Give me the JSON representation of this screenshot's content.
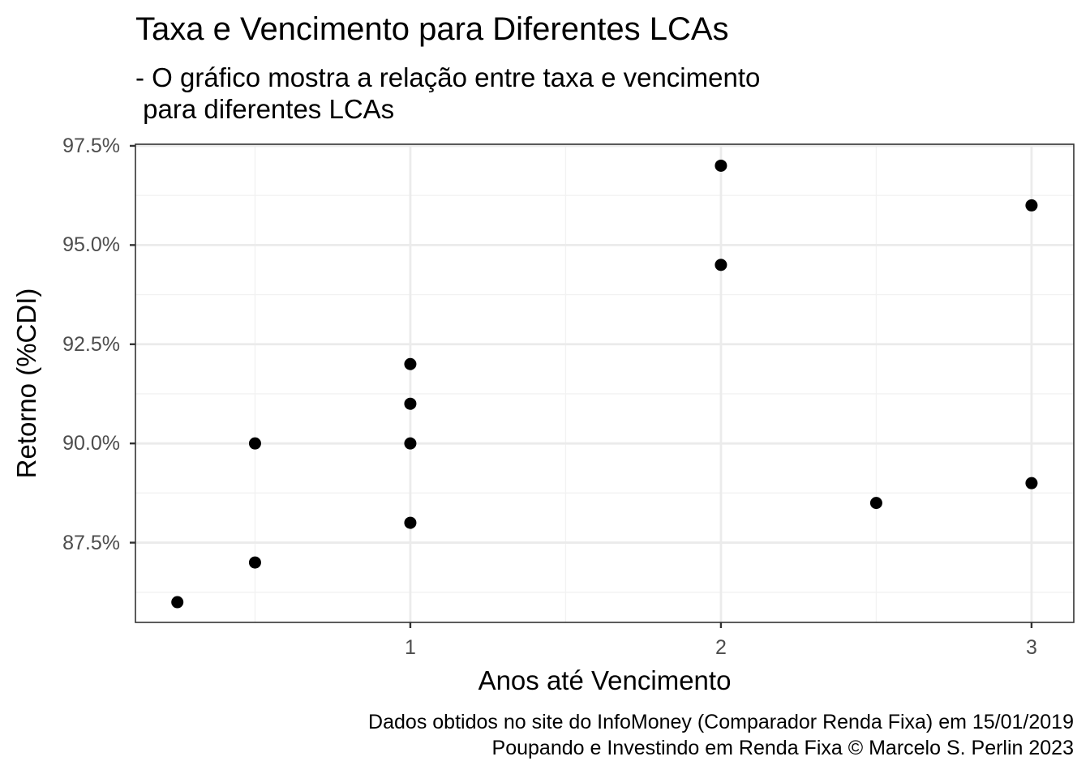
{
  "chart_data": {
    "type": "scatter",
    "title": "Taxa e Vencimento para Diferentes LCAs",
    "subtitle": "- O gráfico mostra a relação entre taxa e vencimento\n para diferentes LCAs",
    "xlabel": "Anos até Vencimento",
    "ylabel": "Retorno (%CDI)",
    "caption": [
      "Dados obtidos no site do InfoMoney (Comparador Renda Fixa) em 15/01/2019",
      "Poupando e Investindo em Renda Fixa © Marcelo S. Perlin 2023"
    ],
    "xlim": [
      0.115,
      3.136
    ],
    "ylim": [
      85.49,
      97.54
    ],
    "x_ticks": [
      1,
      2,
      3
    ],
    "x_tick_labels": [
      "1",
      "2",
      "3"
    ],
    "y_ticks": [
      87.5,
      90.0,
      92.5,
      95.0,
      97.5
    ],
    "y_tick_labels": [
      "87.5%",
      "90.0%",
      "92.5%",
      "95.0%",
      "97.5%"
    ],
    "x_minor": [
      0.5,
      1.5,
      2.5
    ],
    "y_minor": [
      86.25,
      88.75,
      91.25,
      93.75,
      96.25
    ],
    "grid": true,
    "legend": null,
    "point_color": "#000000",
    "points": [
      {
        "x": 0.25,
        "y": 86.0
      },
      {
        "x": 0.5,
        "y": 90.0
      },
      {
        "x": 0.5,
        "y": 87.0
      },
      {
        "x": 1,
        "y": 92.0
      },
      {
        "x": 1,
        "y": 91.0
      },
      {
        "x": 1,
        "y": 90.0
      },
      {
        "x": 1,
        "y": 88.0
      },
      {
        "x": 2,
        "y": 97.0
      },
      {
        "x": 2,
        "y": 94.5
      },
      {
        "x": 2.5,
        "y": 88.5
      },
      {
        "x": 3,
        "y": 96.0
      },
      {
        "x": 3,
        "y": 89.0
      }
    ]
  },
  "layout_colors": {
    "panel_border": "#333333",
    "grid_major": "#ebebeb",
    "grid_minor": "#f2f2f2",
    "tick_text": "#4d4d4d"
  }
}
